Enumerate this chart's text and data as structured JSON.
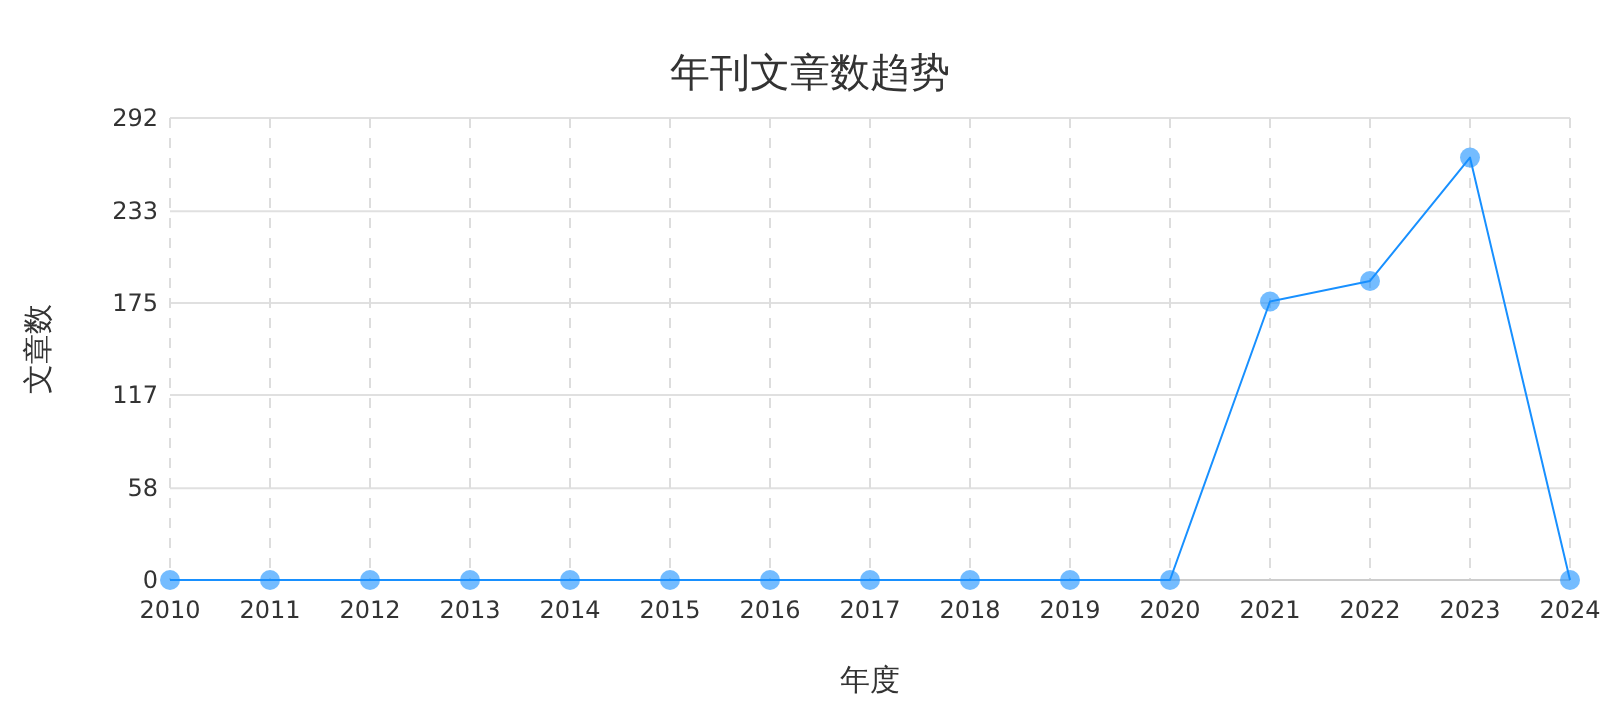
{
  "chart_data": {
    "type": "line",
    "title": "年刊文章数趋势",
    "xlabel": "年度",
    "ylabel": "文章数",
    "categories": [
      "2010",
      "2011",
      "2012",
      "2013",
      "2014",
      "2015",
      "2016",
      "2017",
      "2018",
      "2019",
      "2020",
      "2021",
      "2022",
      "2023",
      "2024"
    ],
    "series": [
      {
        "color": "#1890ff",
        "values": [
          0,
          0,
          0,
          0,
          0,
          0,
          0,
          0,
          0,
          0,
          0,
          176,
          189,
          267,
          0
        ]
      }
    ],
    "ylim": [
      0,
      292
    ],
    "yticks": [
      0,
      58,
      117,
      175,
      233,
      292
    ],
    "grid": true,
    "marker": "circle",
    "line_style": "solid"
  }
}
